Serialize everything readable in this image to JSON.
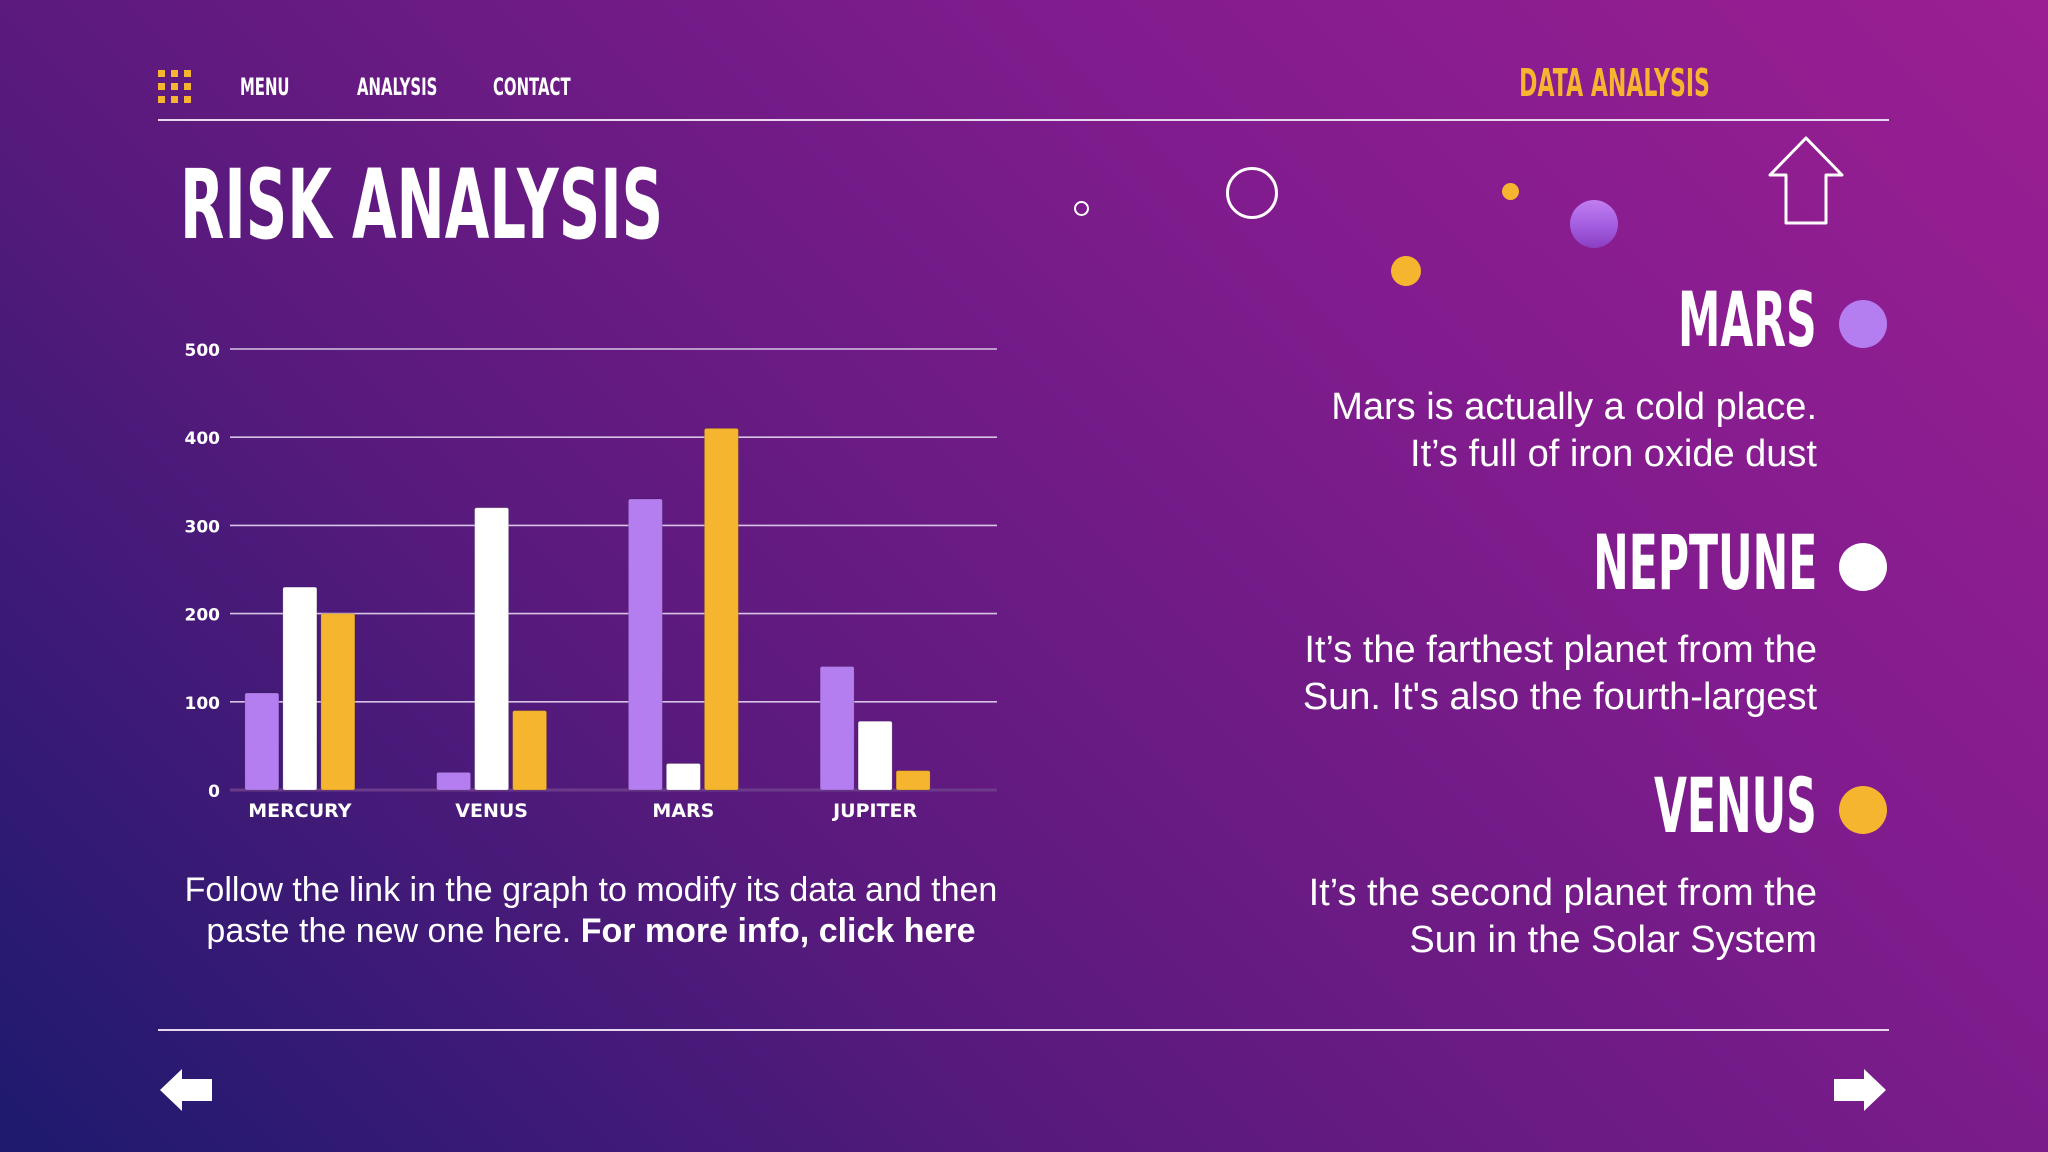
{
  "nav": {
    "menu_icon": "grid-icon",
    "items": [
      "MENU",
      "ANALYSIS",
      "CONTACT"
    ],
    "brand": "DATA ANALYSIS"
  },
  "title": "RISK ANALYSIS",
  "chart_data": {
    "type": "bar",
    "categories": [
      "MERCURY",
      "VENUS",
      "MARS",
      "JUPITER"
    ],
    "series": [
      {
        "color": "#b57ef0",
        "values": [
          110,
          20,
          330,
          140
        ]
      },
      {
        "color": "#ffffff",
        "values": [
          230,
          320,
          30,
          78
        ]
      },
      {
        "color": "#f6b52e",
        "values": [
          200,
          90,
          410,
          22
        ]
      }
    ],
    "yticks": [
      0,
      100,
      200,
      300,
      400,
      500
    ],
    "ylim": [
      0,
      500
    ],
    "grid": true,
    "legend": "none"
  },
  "caption": {
    "text": "Follow the link in the graph to modify its data and then paste the new one here.",
    "link": "For more info, click here"
  },
  "planets": [
    {
      "name": "MARS",
      "color": "#b57ef0",
      "desc_line1": "Mars is actually a cold place.",
      "desc_line2": "It’s full of iron oxide dust"
    },
    {
      "name": "NEPTUNE",
      "color": "#ffffff",
      "desc_line1": "It’s the farthest planet from the",
      "desc_line2": "Sun. It's also the fourth-largest"
    },
    {
      "name": "VENUS",
      "color": "#f6b52e",
      "desc_line1": "It’s the second planet from the",
      "desc_line2": "Sun in the Solar System"
    }
  ],
  "icons": {
    "home": "home-icon",
    "prev": "arrow-left-icon",
    "next": "arrow-right-icon"
  },
  "colors": {
    "accent": "#f6b52e",
    "purple": "#b57ef0"
  }
}
